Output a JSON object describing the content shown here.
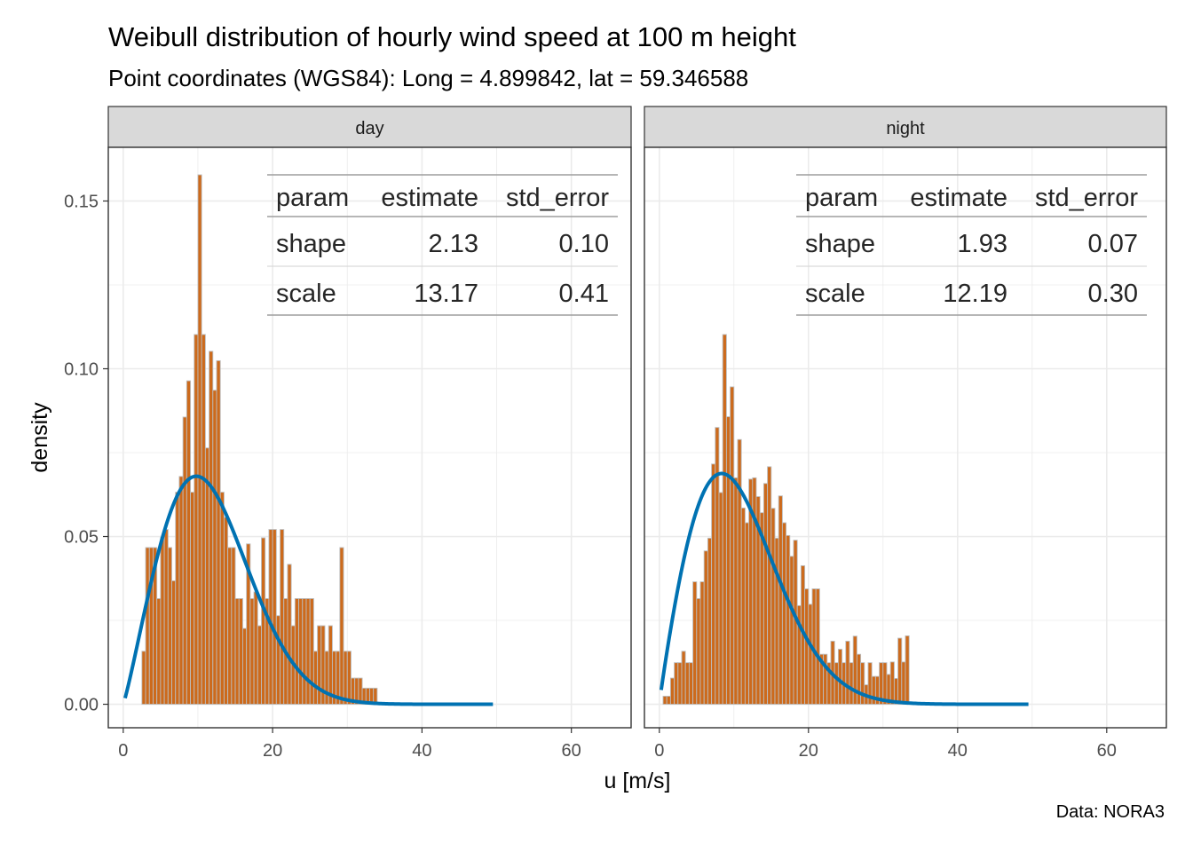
{
  "title": "Weibull distribution of hourly wind speed at 100 m height",
  "subtitle": "Point coordinates (WGS84): Long = 4.899842, lat = 59.346588",
  "caption": "Data: NORA3",
  "colors": {
    "bar_fill": "#CC6A1C",
    "bar_outline": "#BDBDBD",
    "curve": "#0072B2",
    "strip_bg": "#D9D9D9",
    "grid": "#EBEBEB",
    "panel_border": "#333333"
  },
  "chart_data": {
    "type": "bar",
    "xlabel": "u [m/s]",
    "ylabel": "density",
    "xlim": [
      -2,
      68
    ],
    "ylim": [
      -0.007,
      0.166
    ],
    "x_ticks": [
      0,
      20,
      40,
      60
    ],
    "x_tick_labels": [
      "0",
      "20",
      "40",
      "60"
    ],
    "y_ticks": [
      0,
      0.05,
      0.1,
      0.15
    ],
    "y_tick_labels": [
      "0.00",
      "0.05",
      "0.10",
      "0.15"
    ],
    "grid": true,
    "bin_width": 0.5,
    "table_columns": [
      "param",
      "estimate",
      "std_error"
    ],
    "panels": [
      {
        "name": "day",
        "histogram": {
          "x_start": 0,
          "densities": [
            0,
            0,
            0,
            0,
            0,
            0.0158,
            0.0467,
            0.0467,
            0.0467,
            0.0315,
            0.0497,
            0.0521,
            0.0467,
            0.0368,
            0.0632,
            0.0679,
            0.0856,
            0.0964,
            0.0632,
            0.1102,
            0.1578,
            0.1102,
            0.0764,
            0.1052,
            0.0936,
            0.1024,
            0.0632,
            0.0557,
            0.0467,
            0.0467,
            0.0315,
            0.0315,
            0.0226,
            0.0478,
            0.0315,
            0.0335,
            0.0234,
            0.0496,
            0.0315,
            0.0521,
            0.0521,
            0.0264,
            0.0521,
            0.0315,
            0.0417,
            0.0234,
            0.0315,
            0.0315,
            0.0315,
            0.0315,
            0.0315,
            0.0158,
            0.0234,
            0.0234,
            0.0158,
            0.0234,
            0.0158,
            0.0158,
            0.0467,
            0.0158,
            0.0158,
            0.0078,
            0.0078,
            0.0078,
            0.0048,
            0.0048,
            0.0048,
            0.0048,
            0,
            0,
            0,
            0,
            0,
            0
          ]
        },
        "weibull_fit": {
          "shape": 2.13,
          "scale": 13.17,
          "x_range": [
            0.25,
            49.5
          ]
        },
        "table": [
          [
            "shape",
            "2.13",
            "0.10"
          ],
          [
            "scale",
            "13.17",
            "0.41"
          ]
        ]
      },
      {
        "name": "night",
        "histogram": {
          "x_start": 0,
          "densities": [
            0,
            0.0024,
            0.0024,
            0.0078,
            0.0124,
            0.0124,
            0.0158,
            0.0124,
            0.0124,
            0.0365,
            0.0315,
            0.0365,
            0.0457,
            0.0495,
            0.0716,
            0.0825,
            0.0631,
            0.1102,
            0.0857,
            0.0946,
            0.0675,
            0.0789,
            0.0585,
            0.0541,
            0.0671,
            0.0675,
            0.0619,
            0.0571,
            0.0658,
            0.0708,
            0.0584,
            0.0495,
            0.0621,
            0.0541,
            0.0503,
            0.0441,
            0.0489,
            0.0294,
            0.0413,
            0.0344,
            0.0298,
            0.0344,
            0.0344,
            0.0149,
            0.0149,
            0.0124,
            0.0188,
            0.0124,
            0.0164,
            0.0124,
            0.0188,
            0.0124,
            0.0203,
            0.0149,
            0.0124,
            0.0058,
            0.0124,
            0.0083,
            0.0083,
            0.0124,
            0.0124,
            0.0089,
            0.0126,
            0.0077,
            0.0197,
            0.0126,
            0.0204,
            0,
            0,
            0,
            0,
            0,
            0,
            0
          ]
        },
        "weibull_fit": {
          "shape": 1.93,
          "scale": 12.19,
          "x_range": [
            0.25,
            49.5
          ]
        },
        "table": [
          [
            "shape",
            "1.93",
            "0.07"
          ],
          [
            "scale",
            "12.19",
            "0.30"
          ]
        ]
      }
    ]
  }
}
